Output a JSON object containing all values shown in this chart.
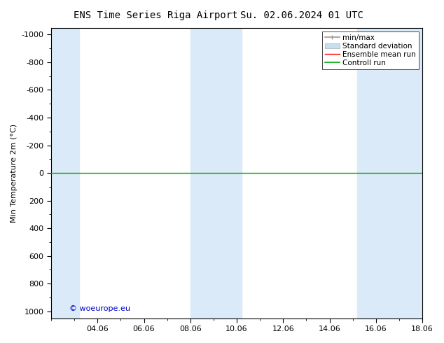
{
  "title_left": "ENS Time Series Riga Airport",
  "title_right": "Su. 02.06.2024 01 UTC",
  "ylabel": "Min Temperature 2m (°C)",
  "ylim": [
    -1050,
    1050
  ],
  "yticks": [
    -1000,
    -800,
    -600,
    -400,
    -200,
    0,
    200,
    400,
    600,
    800,
    1000
  ],
  "yinverted": true,
  "xlim": [
    0,
    16
  ],
  "xtick_labels": [
    "04.06",
    "06.06",
    "08.06",
    "10.06",
    "12.06",
    "14.06",
    "16.06",
    "18.06"
  ],
  "xtick_positions": [
    2,
    4,
    6,
    8,
    10,
    12,
    14,
    16
  ],
  "bg_color": "#ffffff",
  "plot_bg_color": "#ffffff",
  "shaded_bands": [
    {
      "x_start": 0,
      "x_end": 1.2,
      "color": "#daeaf8"
    },
    {
      "x_start": 6,
      "x_end": 8.2,
      "color": "#daeaf8"
    },
    {
      "x_start": 13.2,
      "x_end": 16,
      "color": "#daeaf8"
    }
  ],
  "hline_y": 0,
  "hline_green_color": "#00aa00",
  "watermark": "© woeurope.eu",
  "watermark_color": "#0000cc",
  "legend_items": [
    {
      "label": "min/max",
      "color": "#999999",
      "lw": 1.2,
      "type": "line_caps"
    },
    {
      "label": "Standard deviation",
      "color": "#c8dff0",
      "lw": 8,
      "type": "patch"
    },
    {
      "label": "Ensemble mean run",
      "color": "#ff0000",
      "lw": 1,
      "type": "line"
    },
    {
      "label": "Controll run",
      "color": "#00aa00",
      "lw": 1.2,
      "type": "line"
    }
  ],
  "title_fontsize": 10,
  "axis_label_fontsize": 8,
  "tick_fontsize": 8,
  "legend_fontsize": 7.5
}
